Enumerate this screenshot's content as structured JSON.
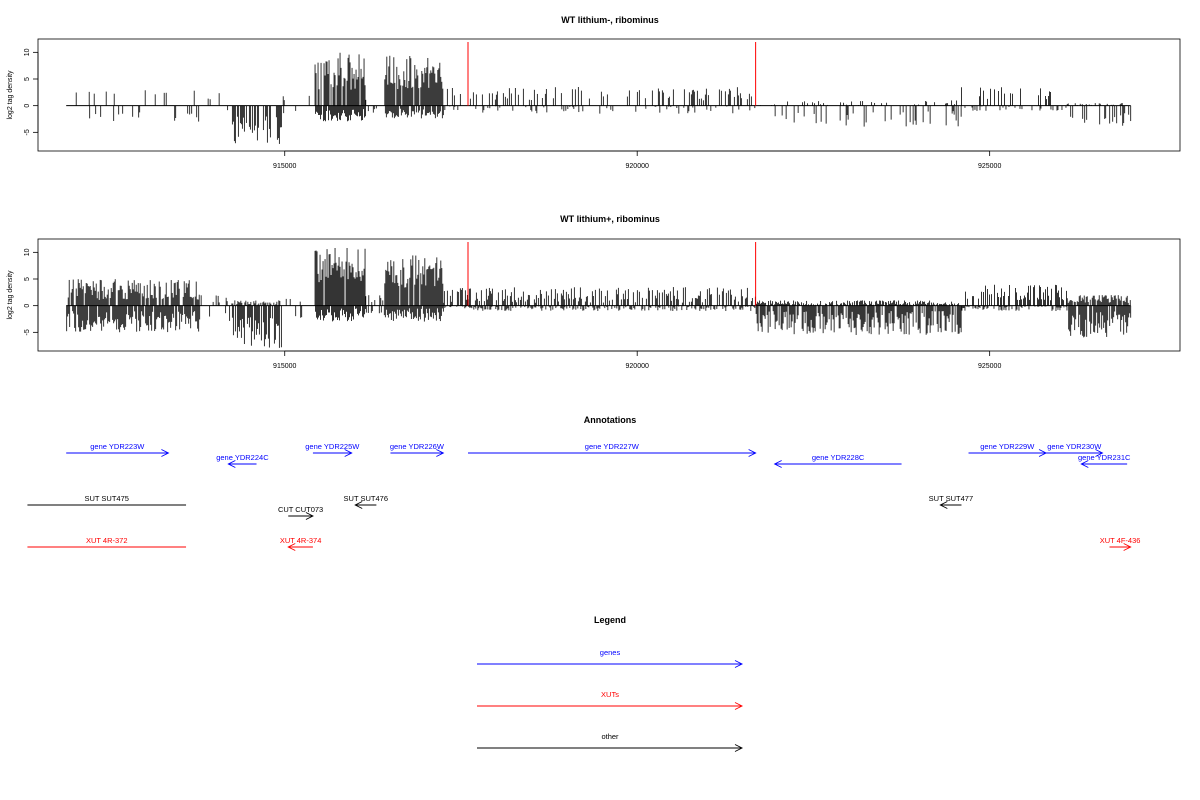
{
  "chart_data": [
    {
      "type": "bar",
      "title": "WT lithium-, ribominus",
      "ylabel": "log2 tag density",
      "xlabel": "",
      "xlim": [
        911500,
        927700
      ],
      "ylim": [
        -8.5,
        12.5
      ],
      "xticks": [
        915000,
        920000,
        925000
      ],
      "yticks": [
        10,
        5,
        0,
        -5
      ],
      "marker_lines": {
        "color": "#ff0000",
        "x": [
          917600,
          921680
        ]
      },
      "segments": [
        {
          "start": 911900,
          "end": 913800,
          "density": 0.12,
          "pos": [
            2,
            3
          ],
          "neg": [
            1,
            3
          ]
        },
        {
          "start": 913800,
          "end": 914250,
          "density": 0.05,
          "pos": [
            1,
            3
          ],
          "neg": [
            0,
            1
          ]
        },
        {
          "start": 914250,
          "end": 914950,
          "density": 0.55,
          "pos": [
            0,
            0
          ],
          "neg": [
            2,
            7.5
          ]
        },
        {
          "start": 914950,
          "end": 915430,
          "density": 0.06,
          "pos": [
            0.5,
            2
          ],
          "neg": [
            0.5,
            2
          ]
        },
        {
          "start": 915430,
          "end": 916150,
          "density": 0.9,
          "pos": [
            3,
            10.5
          ],
          "neg": [
            0.5,
            3
          ]
        },
        {
          "start": 916150,
          "end": 916420,
          "density": 0.05,
          "pos": [
            0.5,
            1.5
          ],
          "neg": [
            0.5,
            2
          ]
        },
        {
          "start": 916420,
          "end": 917250,
          "density": 0.9,
          "pos": [
            3,
            9.5
          ],
          "neg": [
            0.5,
            2.5
          ]
        },
        {
          "start": 917250,
          "end": 921680,
          "density": 0.2,
          "pos": [
            1,
            3.5
          ],
          "neg": [
            0,
            1.5
          ]
        },
        {
          "start": 921680,
          "end": 924600,
          "density": 0.18,
          "pos": [
            0,
            1
          ],
          "neg": [
            1,
            4
          ]
        },
        {
          "start": 924600,
          "end": 926100,
          "density": 0.25,
          "pos": [
            1,
            3.5
          ],
          "neg": [
            0,
            1
          ]
        },
        {
          "start": 926100,
          "end": 927000,
          "density": 0.3,
          "pos": [
            0,
            0.5
          ],
          "neg": [
            1,
            4
          ]
        }
      ]
    },
    {
      "type": "bar",
      "title": "WT lithium+, ribominus",
      "ylabel": "log2 tag density",
      "xlabel": "",
      "xlim": [
        911500,
        927700
      ],
      "ylim": [
        -8.5,
        12.5
      ],
      "xticks": [
        915000,
        920000,
        925000
      ],
      "yticks": [
        10,
        5,
        0,
        -5
      ],
      "marker_lines": {
        "color": "#ff0000",
        "x": [
          917600,
          921680
        ]
      },
      "segments": [
        {
          "start": 911900,
          "end": 913800,
          "density": 0.85,
          "pos": [
            1,
            5
          ],
          "neg": [
            1,
            5
          ]
        },
        {
          "start": 913800,
          "end": 914250,
          "density": 0.2,
          "pos": [
            0.5,
            2
          ],
          "neg": [
            0.5,
            3
          ]
        },
        {
          "start": 914250,
          "end": 914950,
          "density": 0.8,
          "pos": [
            0,
            1
          ],
          "neg": [
            2,
            8
          ]
        },
        {
          "start": 914950,
          "end": 915430,
          "density": 0.1,
          "pos": [
            0.5,
            2
          ],
          "neg": [
            0.5,
            3
          ]
        },
        {
          "start": 915430,
          "end": 916150,
          "density": 0.95,
          "pos": [
            4,
            11
          ],
          "neg": [
            0.5,
            3
          ]
        },
        {
          "start": 916150,
          "end": 916420,
          "density": 0.25,
          "pos": [
            0.5,
            2
          ],
          "neg": [
            0.5,
            2
          ]
        },
        {
          "start": 916420,
          "end": 917250,
          "density": 0.95,
          "pos": [
            3,
            9.5
          ],
          "neg": [
            0.5,
            3
          ]
        },
        {
          "start": 917250,
          "end": 921680,
          "density": 0.55,
          "pos": [
            0.5,
            3.5
          ],
          "neg": [
            0,
            1
          ]
        },
        {
          "start": 921680,
          "end": 924600,
          "density": 0.8,
          "pos": [
            0,
            1
          ],
          "neg": [
            1,
            5.5
          ]
        },
        {
          "start": 924600,
          "end": 926100,
          "density": 0.6,
          "pos": [
            1,
            4
          ],
          "neg": [
            0,
            1
          ]
        },
        {
          "start": 926100,
          "end": 927000,
          "density": 0.85,
          "pos": [
            0.5,
            2
          ],
          "neg": [
            1,
            6
          ]
        }
      ]
    }
  ],
  "annotations": {
    "title": "Annotations",
    "items": [
      {
        "label": "gene YDR223W",
        "start": 911900,
        "end": 913350,
        "strand": "+",
        "row": 0,
        "color": "#0000ff"
      },
      {
        "label": "gene YDR224C",
        "start": 914200,
        "end": 914600,
        "strand": "-",
        "row": 1,
        "color": "#0000ff"
      },
      {
        "label": "gene YDR225W",
        "start": 915400,
        "end": 915950,
        "strand": "+",
        "row": 0,
        "color": "#0000ff"
      },
      {
        "label": "gene YDR226W",
        "start": 916500,
        "end": 917250,
        "strand": "+",
        "row": 0,
        "color": "#0000ff"
      },
      {
        "label": "gene YDR227W",
        "start": 917600,
        "end": 921680,
        "strand": "+",
        "row": 0,
        "color": "#0000ff"
      },
      {
        "label": "gene YDR228C",
        "start": 921950,
        "end": 923750,
        "strand": "-",
        "row": 1,
        "color": "#0000ff"
      },
      {
        "label": "gene YDR229W",
        "start": 924700,
        "end": 925800,
        "strand": "+",
        "row": 0,
        "color": "#0000ff"
      },
      {
        "label": "gene YDR230W",
        "start": 925800,
        "end": 926600,
        "strand": "+",
        "row": 0,
        "color": "#0000ff"
      },
      {
        "label": "gene YDR231C",
        "start": 926300,
        "end": 926950,
        "strand": "-",
        "row": 1,
        "color": "#0000ff"
      },
      {
        "label": "SUT SUT475",
        "start": 911350,
        "end": 913600,
        "strand": "none",
        "row": 2,
        "color": "#000000"
      },
      {
        "label": "SUT SUT476",
        "start": 916000,
        "end": 916300,
        "strand": "-",
        "row": 2,
        "color": "#000000"
      },
      {
        "label": "CUT CUT073",
        "start": 915050,
        "end": 915400,
        "strand": "+",
        "row": 3,
        "color": "#000000"
      },
      {
        "label": "SUT SUT477",
        "start": 924300,
        "end": 924600,
        "strand": "-",
        "row": 2,
        "color": "#000000"
      },
      {
        "label": "XUT 4R-372",
        "start": 911350,
        "end": 913600,
        "strand": "none",
        "row": 4,
        "color": "#ff0000"
      },
      {
        "label": "XUT 4R-374",
        "start": 915050,
        "end": 915400,
        "strand": "-",
        "row": 4,
        "color": "#ff0000"
      },
      {
        "label": "XUT 4F-436",
        "start": 926700,
        "end": 927000,
        "strand": "+",
        "row": 4,
        "color": "#ff0000"
      }
    ]
  },
  "legend": {
    "title": "Legend",
    "items": [
      {
        "label": "genes",
        "color": "#0000ff"
      },
      {
        "label": "XUTs",
        "color": "#ff0000"
      },
      {
        "label": "other",
        "color": "#000000"
      }
    ]
  }
}
